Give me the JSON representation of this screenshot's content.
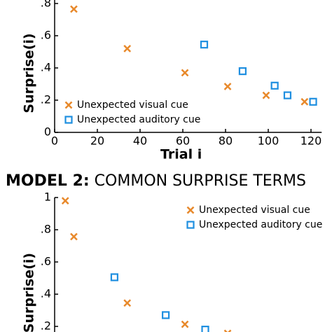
{
  "chart_data": [
    {
      "type": "scatter",
      "xlabel": "Trial i",
      "ylabel": "Surprise(i)",
      "xlim": [
        0,
        125
      ],
      "ylim": [
        0,
        1
      ],
      "xticks": [
        0,
        20,
        40,
        60,
        80,
        100,
        120
      ],
      "yticks": [
        0,
        {
          "value": 0.2,
          "label": ".2"
        },
        {
          "value": 0.4,
          "label": ".4"
        },
        {
          "value": 0.6,
          "label": ".6"
        },
        {
          "value": 0.8,
          "label": ".8"
        }
      ],
      "legend": "lower left",
      "series": [
        {
          "name": "Unexpected visual cue",
          "color": "#e8892b",
          "marker": "x",
          "x": [
            9,
            34,
            61,
            81,
            99,
            117
          ],
          "values": [
            0.765,
            0.52,
            0.37,
            0.285,
            0.23,
            0.19
          ]
        },
        {
          "name": "Unexpected auditory cue",
          "color": "#1f8fe0",
          "marker": "square",
          "x": [
            70,
            88,
            103,
            109,
            121
          ],
          "values": [
            0.545,
            0.38,
            0.29,
            0.23,
            0.19
          ]
        }
      ]
    },
    {
      "type": "scatter",
      "title_lead": "MODEL 2:",
      "title": "COMMON SURPRISE TERMS",
      "ylabel": "Surprise(i)",
      "xlim": [
        0,
        125
      ],
      "ylim": [
        0,
        1
      ],
      "yticks": [
        {
          "value": 0.2,
          "label": ".2"
        },
        {
          "value": 0.4,
          "label": ".4"
        },
        {
          "value": 0.6,
          "label": ".6"
        },
        {
          "value": 0.8,
          "label": ".8"
        },
        1
      ],
      "legend": "upper right",
      "series": [
        {
          "name": "Unexpected visual cue",
          "color": "#e8892b",
          "marker": "x",
          "x": [
            5,
            9,
            34,
            61,
            81
          ],
          "values": [
            0.98,
            0.757,
            0.345,
            0.213,
            0.157
          ]
        },
        {
          "name": "Unexpected auditory cue",
          "color": "#1f8fe0",
          "marker": "square",
          "x": [
            28,
            52,
            70.5
          ],
          "values": [
            0.505,
            0.27,
            0.18
          ]
        }
      ]
    }
  ]
}
